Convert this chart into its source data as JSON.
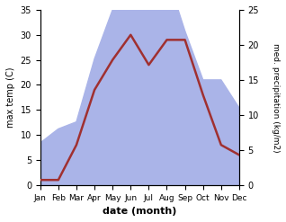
{
  "months": [
    "Jan",
    "Feb",
    "Mar",
    "Apr",
    "May",
    "Jun",
    "Jul",
    "Aug",
    "Sep",
    "Oct",
    "Nov",
    "Dec"
  ],
  "temperature": [
    1,
    1,
    8,
    19,
    25,
    30,
    24,
    29,
    29,
    18,
    8,
    6
  ],
  "precipitation": [
    6,
    8,
    9,
    18,
    25,
    33,
    25,
    30,
    22,
    15,
    15,
    11
  ],
  "temp_color": "#a03030",
  "precip_color": "#aab4e8",
  "temp_ylim": [
    0,
    35
  ],
  "precip_ylim": [
    0,
    25
  ],
  "temp_yticks": [
    0,
    5,
    10,
    15,
    20,
    25,
    30,
    35
  ],
  "precip_yticks": [
    0,
    5,
    10,
    15,
    20,
    25
  ],
  "ylabel_left": "max temp (C)",
  "ylabel_right": "med. precipitation (kg/m2)",
  "xlabel": "date (month)",
  "bg_color": "#ffffff",
  "temp_linewidth": 1.8,
  "fig_width": 3.18,
  "fig_height": 2.47,
  "dpi": 100
}
